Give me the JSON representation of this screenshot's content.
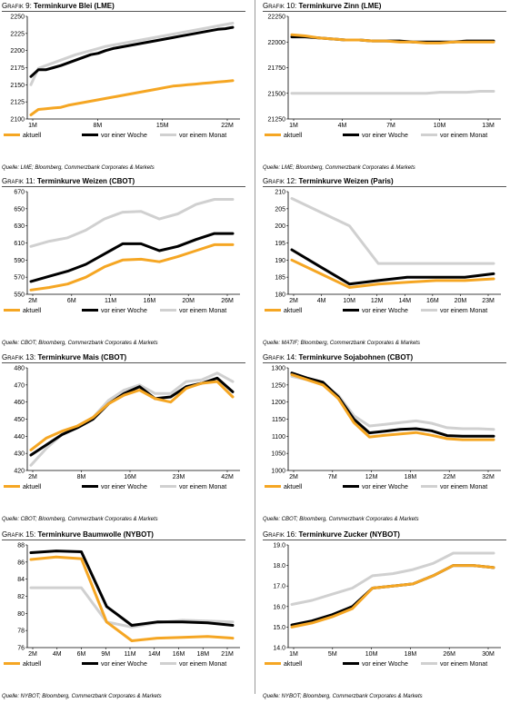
{
  "colors": {
    "aktuell": "#f5a623",
    "woche": "#000000",
    "monat": "#d0d0d0"
  },
  "charts": [
    {
      "id": "g9",
      "prefix": "Grafik 9:",
      "title": "Terminkurve Blei (LME)",
      "source": "Quelle: LME; Bloomberg, Commerzbank Corporates & Markets",
      "chart_data": {
        "type": "line",
        "ylim": [
          2100,
          2250
        ],
        "yticks": [
          "2100",
          "2125",
          "2150",
          "2175",
          "2200",
          "2225",
          "2250"
        ],
        "xlabels": [
          "1M",
          "8M",
          "15M",
          "22M"
        ],
        "legend": [
          "aktuell",
          "vor einer Woche",
          "vor einem Monat"
        ],
        "series": [
          {
            "values": [
              2106,
              2114,
              2115,
              2116,
              2117,
              2120,
              2122,
              2124,
              2126,
              2128,
              2130,
              2132,
              2134,
              2136,
              2138,
              2140,
              2142,
              2144,
              2146,
              2148,
              2149,
              2150,
              2151,
              2152,
              2153,
              2154,
              2155,
              2156
            ]
          },
          {
            "values": [
              2162,
              2172,
              2172,
              2175,
              2178,
              2182,
              2186,
              2190,
              2194,
              2196,
              2200,
              2203,
              2205,
              2207,
              2209,
              2211,
              2213,
              2215,
              2217,
              2219,
              2221,
              2223,
              2225,
              2227,
              2229,
              2231,
              2232,
              2234
            ]
          },
          {
            "values": [
              2150,
              2174,
              2178,
              2182,
              2186,
              2190,
              2194,
              2197,
              2200,
              2203,
              2206,
              2208,
              2210,
              2212,
              2214,
              2216,
              2218,
              2220,
              2222,
              2224,
              2226,
              2228,
              2230,
              2232,
              2234,
              2236,
              2238,
              2240
            ]
          }
        ]
      }
    },
    {
      "id": "g10",
      "prefix": "Grafik 10:",
      "title": "Terminkurve Zinn (LME)",
      "source": "Quelle: LME; Bloomberg, Commerzbank Corporates & Markets",
      "chart_data": {
        "type": "line",
        "ylim": [
          21250,
          22250
        ],
        "yticks": [
          "21250",
          "21500",
          "21750",
          "22000",
          "22250"
        ],
        "xlabels": [
          "1M",
          "4M",
          "7M",
          "10M",
          "13M"
        ],
        "legend": [
          "aktuell",
          "vor einer Woche",
          "vor einem Monat"
        ],
        "series": [
          {
            "values": [
              22070,
              22060,
              22040,
              22030,
              22020,
              22020,
              22010,
              22010,
              22000,
              22000,
              21990,
              21990,
              22000,
              22000,
              22000,
              22000
            ]
          },
          {
            "values": [
              22050,
              22050,
              22040,
              22030,
              22020,
              22020,
              22010,
              22010,
              22010,
              22000,
              22000,
              22000,
              22000,
              22010,
              22010,
              22010
            ]
          },
          {
            "values": [
              21500,
              21500,
              21500,
              21500,
              21500,
              21500,
              21500,
              21500,
              21500,
              21500,
              21500,
              21510,
              21510,
              21510,
              21520,
              21520
            ]
          }
        ]
      }
    },
    {
      "id": "g11",
      "prefix": "Grafik 11:",
      "title": "Terminkurve Weizen (CBOT)",
      "source": "Quelle: CBOT; Bloomberg, Commerzbank Corporates & Markets",
      "chart_data": {
        "type": "line",
        "ylim": [
          550,
          670
        ],
        "yticks": [
          "550",
          "570",
          "590",
          "610",
          "630",
          "650",
          "670"
        ],
        "xlabels": [
          "2M",
          "6M",
          "11M",
          "16M",
          "20M",
          "26M"
        ],
        "legend": [
          "aktuell",
          "vor einer Woche",
          "vor einem Monat"
        ],
        "series": [
          {
            "values": [
              555,
              558,
              562,
              570,
              582,
              590,
              591,
              588,
              594,
              601,
              608,
              608
            ]
          },
          {
            "values": [
              565,
              571,
              577,
              585,
              597,
              609,
              609,
              601,
              606,
              614,
              621,
              621
            ]
          },
          {
            "values": [
              606,
              612,
              616,
              625,
              638,
              646,
              647,
              638,
              644,
              655,
              661,
              661
            ]
          }
        ]
      }
    },
    {
      "id": "g12",
      "prefix": "Grafik 12:",
      "title": "Terminkurve Weizen (Paris)",
      "source": "Quelle: MATIF; Bloomberg, Commerzbank Corporates & Markets",
      "chart_data": {
        "type": "line",
        "ylim": [
          180,
          210
        ],
        "yticks": [
          "180",
          "185",
          "190",
          "195",
          "200",
          "205",
          "210"
        ],
        "xlabels": [
          "2M",
          "4M",
          "10M",
          "12M",
          "14M",
          "16M",
          "20M",
          "23M"
        ],
        "legend": [
          "aktuell",
          "vor einer Woche",
          "vor einem Monat"
        ],
        "series": [
          {
            "values": [
              190,
              186,
              182,
              183,
              183.5,
              184,
              184,
              184.5
            ]
          },
          {
            "values": [
              193,
              188,
              183,
              184,
              185,
              185,
              185,
              186
            ]
          },
          {
            "values": [
              208,
              204,
              200,
              189,
              189,
              189,
              189,
              189
            ]
          }
        ]
      }
    },
    {
      "id": "g13",
      "prefix": "Grafik 13:",
      "title": "Terminkurve Mais (CBOT)",
      "source": "Quelle: CBOT; Bloomberg, Commerzbank Corporates & Markets",
      "chart_data": {
        "type": "line",
        "ylim": [
          420,
          480
        ],
        "yticks": [
          "420",
          "430",
          "440",
          "450",
          "460",
          "470",
          "480"
        ],
        "xlabels": [
          "2M",
          "8M",
          "16M",
          "23M",
          "42M"
        ],
        "legend": [
          "aktuell",
          "vor einer Woche",
          "vor einem Monat"
        ],
        "series": [
          {
            "values": [
              432,
              439,
              443,
              446,
              451,
              459,
              464,
              467,
              462,
              460,
              468,
              471,
              472,
              463
            ]
          },
          {
            "values": [
              429,
              435,
              441,
              445,
              450,
              459,
              465,
              469,
              462,
              463,
              469,
              471,
              474,
              466
            ]
          },
          {
            "values": [
              423,
              433,
              441,
              446,
              451,
              461,
              467,
              470,
              465,
              465,
              472,
              473,
              477,
              472
            ]
          }
        ]
      }
    },
    {
      "id": "g14",
      "prefix": "Grafik 14:",
      "title": "Terminkurve Sojabohnen (CBOT)",
      "source": "Quelle: CBOT; Bloomberg, Commerzbank Corporates & Markets",
      "chart_data": {
        "type": "line",
        "ylim": [
          1000,
          1300
        ],
        "yticks": [
          "1000",
          "1050",
          "1100",
          "1150",
          "1200",
          "1250",
          "1300"
        ],
        "xlabels": [
          "2M",
          "7M",
          "12M",
          "18M",
          "22M",
          "32M"
        ],
        "legend": [
          "aktuell",
          "vor einer Woche",
          "vor einem Monat"
        ],
        "series": [
          {
            "values": [
              1280,
              1265,
              1250,
              1210,
              1140,
              1098,
              1103,
              1107,
              1111,
              1103,
              1093,
              1090,
              1090,
              1090
            ]
          },
          {
            "values": [
              1285,
              1270,
              1258,
              1215,
              1150,
              1110,
              1115,
              1120,
              1122,
              1116,
              1102,
              1100,
              1100,
              1100
            ]
          },
          {
            "values": [
              1275,
              1265,
              1250,
              1220,
              1160,
              1130,
              1135,
              1140,
              1145,
              1138,
              1125,
              1122,
              1122,
              1120
            ]
          }
        ]
      }
    },
    {
      "id": "g15",
      "prefix": "Grafik 15:",
      "title": "Terminkurve Baumwolle (NYBOT)",
      "source": "Quelle: NYBOT; Bloomberg, Commerzbank Corporates & Markets",
      "chart_data": {
        "type": "line",
        "ylim": [
          76,
          88
        ],
        "yticks": [
          "76",
          "78",
          "80",
          "82",
          "84",
          "86",
          "88"
        ],
        "xlabels": [
          "2M",
          "4M",
          "6M",
          "9M",
          "11M",
          "14M",
          "16M",
          "18M",
          "21M"
        ],
        "legend": [
          "aktuell",
          "vor einer Woche",
          "vor einem Monat"
        ],
        "series": [
          {
            "values": [
              86.3,
              86.6,
              86.4,
              79.0,
              76.8,
              77.1,
              77.2,
              77.3,
              77.1
            ]
          },
          {
            "values": [
              87.1,
              87.3,
              87.2,
              80.8,
              78.6,
              79.0,
              79.0,
              78.9,
              78.6
            ]
          },
          {
            "values": [
              83.0,
              83.0,
              83.0,
              79.0,
              78.4,
              78.9,
              79.2,
              79.1,
              79.0
            ]
          }
        ]
      }
    },
    {
      "id": "g16",
      "prefix": "Grafik 16:",
      "title": "Terminkurve Zucker (NYBOT)",
      "source": "Quelle: NYBOT; Bloomberg, Commerzbank Corporates & Markets",
      "chart_data": {
        "type": "line",
        "ylim": [
          14.0,
          19.0
        ],
        "yticks": [
          "14.0",
          "15.0",
          "16.0",
          "17.0",
          "18.0",
          "19.0"
        ],
        "xlabels": [
          "1M",
          "5M",
          "10M",
          "18M",
          "26M",
          "30M"
        ],
        "legend": [
          "aktuell",
          "vor einer Woche",
          "vor einem Monat"
        ],
        "series": [
          {
            "values": [
              15.0,
              15.2,
              15.5,
              15.9,
              16.9,
              17.0,
              17.1,
              17.5,
              18.0,
              18.0,
              17.9
            ]
          },
          {
            "values": [
              15.1,
              15.3,
              15.6,
              16.0,
              16.9,
              17.0,
              17.1,
              17.5,
              18.0,
              18.0,
              17.9
            ]
          },
          {
            "values": [
              16.1,
              16.3,
              16.6,
              16.9,
              17.5,
              17.6,
              17.8,
              18.1,
              18.6,
              18.6,
              18.6
            ]
          }
        ]
      }
    }
  ]
}
